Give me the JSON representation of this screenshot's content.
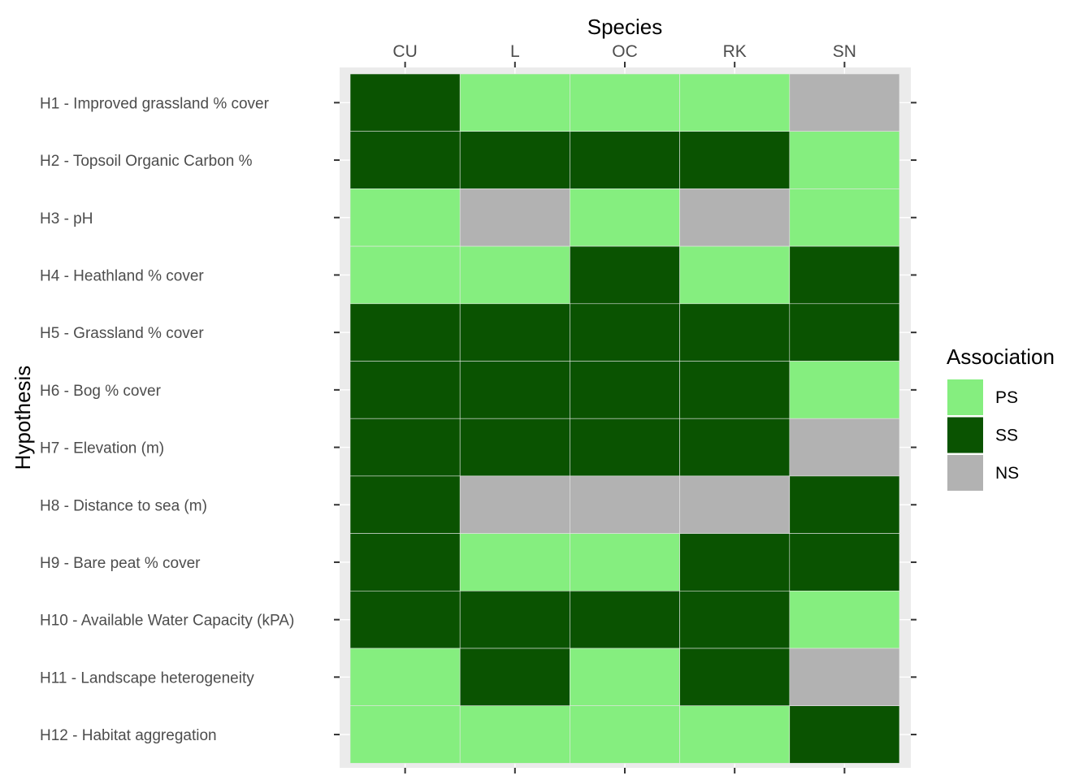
{
  "chart_data": {
    "type": "heatmap",
    "xlabel": "Species",
    "ylabel": "Hypothesis",
    "x_axis_position": "top",
    "x_categories": [
      "CU",
      "L",
      "OC",
      "RK",
      "SN"
    ],
    "y_categories": [
      "H1 - Improved grassland % cover",
      "H2 - Topsoil Organic Carbon %",
      "H3 - pH",
      "H4 - Heathland % cover",
      "H5 - Grassland % cover",
      "H6 - Bog % cover",
      "H7 - Elevation (m)",
      "H8 - Distance to sea (m)",
      "H9 - Bare peat % cover",
      "H10 - Available Water Capacity (kPA)",
      "H11 - Landscape heterogeneity",
      "H12 - Habitat aggregation"
    ],
    "values": [
      [
        "SS",
        "PS",
        "PS",
        "PS",
        "NS"
      ],
      [
        "SS",
        "SS",
        "SS",
        "SS",
        "PS"
      ],
      [
        "PS",
        "NS",
        "PS",
        "NS",
        "PS"
      ],
      [
        "PS",
        "PS",
        "SS",
        "PS",
        "SS"
      ],
      [
        "SS",
        "SS",
        "SS",
        "SS",
        "SS"
      ],
      [
        "SS",
        "SS",
        "SS",
        "SS",
        "PS"
      ],
      [
        "SS",
        "SS",
        "SS",
        "SS",
        "NS"
      ],
      [
        "SS",
        "NS",
        "NS",
        "NS",
        "SS"
      ],
      [
        "SS",
        "PS",
        "PS",
        "SS",
        "SS"
      ],
      [
        "SS",
        "SS",
        "SS",
        "SS",
        "PS"
      ],
      [
        "PS",
        "SS",
        "PS",
        "SS",
        "NS"
      ],
      [
        "PS",
        "PS",
        "PS",
        "PS",
        "SS"
      ]
    ],
    "legend": {
      "title": "Association",
      "placement": "right",
      "items": [
        {
          "label": "PS",
          "color": "#85ee7f"
        },
        {
          "label": "SS",
          "color": "#0a5301"
        },
        {
          "label": "NS",
          "color": "#b2b2b2"
        }
      ]
    },
    "panel_background": "#ebebeb",
    "gridlines": true
  }
}
